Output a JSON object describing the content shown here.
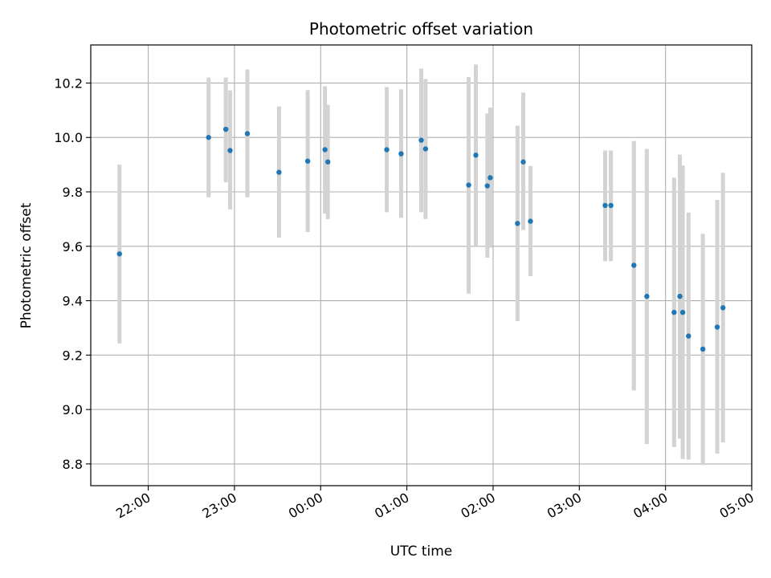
{
  "chart_data": {
    "type": "scatter",
    "title": "Photometric offset variation",
    "xlabel": "UTC time",
    "ylabel": "Photometric offset",
    "x_axis_type": "time",
    "xlim": [
      "21:20",
      "05:00"
    ],
    "ylim": [
      8.72,
      10.34
    ],
    "x_ticks": [
      "22:00",
      "23:00",
      "00:00",
      "01:00",
      "02:00",
      "03:00",
      "04:00",
      "05:00"
    ],
    "y_ticks": [
      8.8,
      9.0,
      9.2,
      9.4,
      9.6,
      9.8,
      10.0,
      10.2
    ],
    "grid": true,
    "legend": "none",
    "point_color": "#1f77b4",
    "errorbar_color": "#d3d3d3",
    "series": [
      {
        "points": [
          {
            "x": "21:40",
            "y": 9.572,
            "ylow": 9.243,
            "yhigh": 9.9
          },
          {
            "x": "22:42",
            "y": 10.0,
            "ylow": 9.78,
            "yhigh": 10.22
          },
          {
            "x": "22:54",
            "y": 10.03,
            "ylow": 9.835,
            "yhigh": 10.22
          },
          {
            "x": "22:57",
            "y": 9.952,
            "ylow": 9.735,
            "yhigh": 10.173
          },
          {
            "x": "23:09",
            "y": 10.014,
            "ylow": 9.78,
            "yhigh": 10.25
          },
          {
            "x": "23:31",
            "y": 9.872,
            "ylow": 9.632,
            "yhigh": 10.114
          },
          {
            "x": "23:51",
            "y": 9.913,
            "ylow": 9.652,
            "yhigh": 10.174
          },
          {
            "x": "00:03",
            "y": 9.955,
            "ylow": 9.72,
            "yhigh": 10.188
          },
          {
            "x": "00:05",
            "y": 9.91,
            "ylow": 9.7,
            "yhigh": 10.12
          },
          {
            "x": "00:46",
            "y": 9.955,
            "ylow": 9.725,
            "yhigh": 10.185
          },
          {
            "x": "00:56",
            "y": 9.94,
            "ylow": 9.705,
            "yhigh": 10.177
          },
          {
            "x": "01:10",
            "y": 9.99,
            "ylow": 9.725,
            "yhigh": 10.253
          },
          {
            "x": "01:13",
            "y": 9.958,
            "ylow": 9.7,
            "yhigh": 10.215
          },
          {
            "x": "01:43",
            "y": 9.825,
            "ylow": 9.426,
            "yhigh": 10.222
          },
          {
            "x": "01:48",
            "y": 9.935,
            "ylow": 9.6,
            "yhigh": 10.268
          },
          {
            "x": "01:56",
            "y": 9.822,
            "ylow": 9.558,
            "yhigh": 10.088
          },
          {
            "x": "01:58",
            "y": 9.852,
            "ylow": 9.595,
            "yhigh": 10.11
          },
          {
            "x": "02:17",
            "y": 9.684,
            "ylow": 9.325,
            "yhigh": 10.043
          },
          {
            "x": "02:21",
            "y": 9.91,
            "ylow": 9.66,
            "yhigh": 10.165
          },
          {
            "x": "02:26",
            "y": 9.692,
            "ylow": 9.49,
            "yhigh": 9.895
          },
          {
            "x": "03:18",
            "y": 9.75,
            "ylow": 9.545,
            "yhigh": 9.952
          },
          {
            "x": "03:22",
            "y": 9.75,
            "ylow": 9.545,
            "yhigh": 9.952
          },
          {
            "x": "03:38",
            "y": 9.53,
            "ylow": 9.07,
            "yhigh": 9.987
          },
          {
            "x": "03:47",
            "y": 9.416,
            "ylow": 8.873,
            "yhigh": 9.958
          },
          {
            "x": "04:06",
            "y": 9.357,
            "ylow": 8.862,
            "yhigh": 9.852
          },
          {
            "x": "04:10",
            "y": 9.416,
            "ylow": 8.893,
            "yhigh": 9.937
          },
          {
            "x": "04:12",
            "y": 9.357,
            "ylow": 8.818,
            "yhigh": 9.897
          },
          {
            "x": "04:16",
            "y": 9.27,
            "ylow": 8.816,
            "yhigh": 9.724
          },
          {
            "x": "04:26",
            "y": 9.222,
            "ylow": 8.796,
            "yhigh": 9.646
          },
          {
            "x": "04:36",
            "y": 9.303,
            "ylow": 8.838,
            "yhigh": 9.77
          },
          {
            "x": "04:40",
            "y": 9.374,
            "ylow": 8.879,
            "yhigh": 9.87
          }
        ]
      }
    ]
  }
}
